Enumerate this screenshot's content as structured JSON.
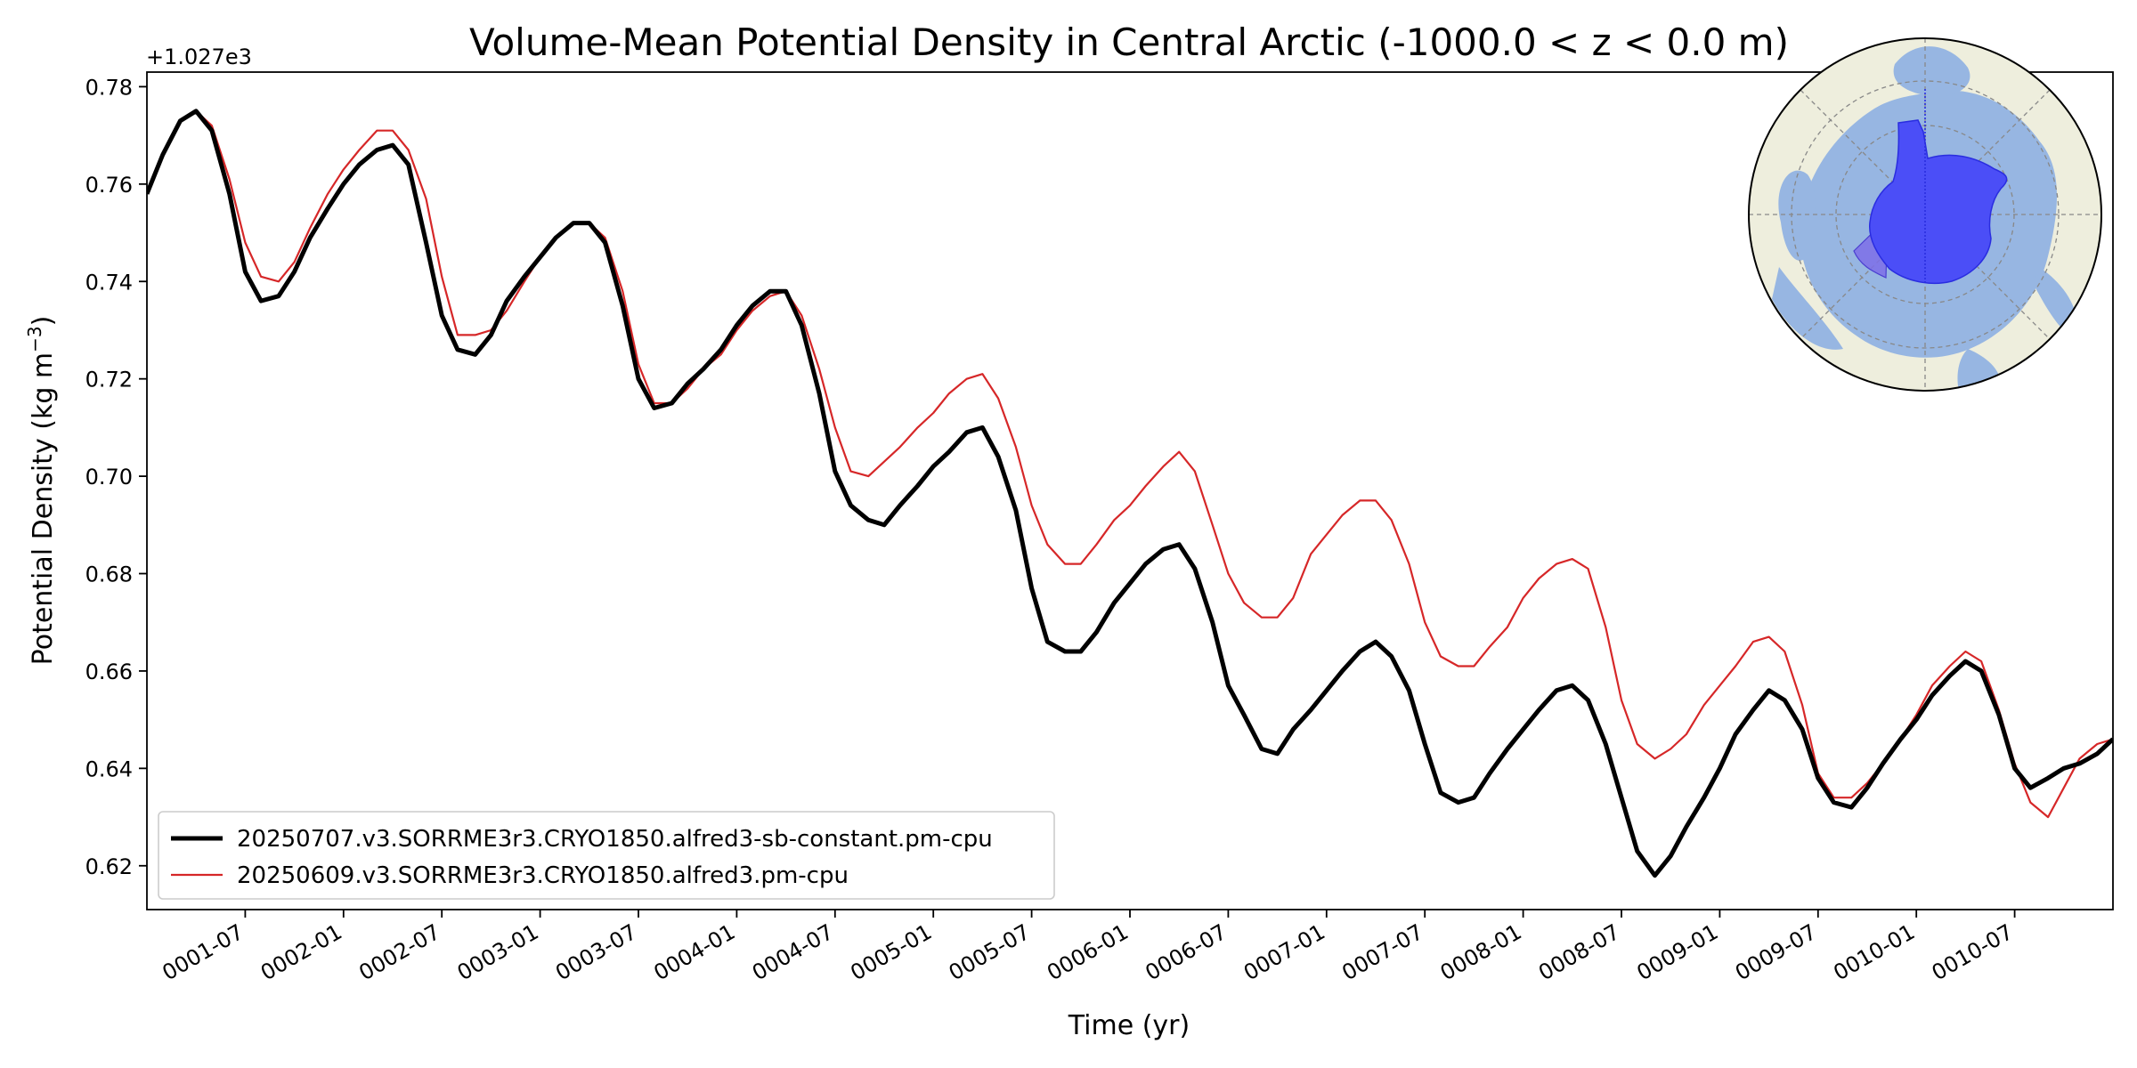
{
  "chart_data": {
    "type": "line",
    "title": "Volume-Mean Potential Density in Central Arctic (-1000.0 < z < 0.0 m)",
    "xlabel": "Time (yr)",
    "ylabel_main": "Potential Density (kg m",
    "ylabel_exp": "−3",
    "ylabel_close": ")",
    "y_offset_label": "+1.027e3",
    "ylim": [
      0.611,
      0.783
    ],
    "xlim": [
      1.0,
      11.0
    ],
    "yticks": [
      "0.62",
      "0.64",
      "0.66",
      "0.68",
      "0.70",
      "0.72",
      "0.74",
      "0.76",
      "0.78"
    ],
    "xticks": [
      "0001-07",
      "0002-01",
      "0002-07",
      "0003-01",
      "0003-07",
      "0004-01",
      "0004-07",
      "0005-01",
      "0005-07",
      "0006-01",
      "0006-07",
      "0007-01",
      "0007-07",
      "0008-01",
      "0008-07",
      "0009-01",
      "0009-07",
      "0010-01",
      "0010-07"
    ],
    "grid": false,
    "legend_position": "lower-left",
    "series": [
      {
        "name": "20250707.v3.SORRME3r3.CRYO1850.alfred3-sb-constant.pm-cpu",
        "color": "#000000",
        "width": "thick",
        "points": [
          [
            1.0,
            0.758
          ],
          [
            1.08,
            0.766
          ],
          [
            1.17,
            0.773
          ],
          [
            1.25,
            0.775
          ],
          [
            1.33,
            0.771
          ],
          [
            1.42,
            0.758
          ],
          [
            1.5,
            0.742
          ],
          [
            1.58,
            0.736
          ],
          [
            1.67,
            0.737
          ],
          [
            1.75,
            0.742
          ],
          [
            1.83,
            0.749
          ],
          [
            1.92,
            0.755
          ],
          [
            2.0,
            0.76
          ],
          [
            2.08,
            0.764
          ],
          [
            2.17,
            0.767
          ],
          [
            2.25,
            0.768
          ],
          [
            2.33,
            0.764
          ],
          [
            2.42,
            0.748
          ],
          [
            2.5,
            0.733
          ],
          [
            2.58,
            0.726
          ],
          [
            2.67,
            0.725
          ],
          [
            2.75,
            0.729
          ],
          [
            2.83,
            0.736
          ],
          [
            2.92,
            0.741
          ],
          [
            3.0,
            0.745
          ],
          [
            3.08,
            0.749
          ],
          [
            3.17,
            0.752
          ],
          [
            3.25,
            0.752
          ],
          [
            3.33,
            0.748
          ],
          [
            3.42,
            0.735
          ],
          [
            3.5,
            0.72
          ],
          [
            3.58,
            0.714
          ],
          [
            3.67,
            0.715
          ],
          [
            3.75,
            0.719
          ],
          [
            3.83,
            0.722
          ],
          [
            3.92,
            0.726
          ],
          [
            4.0,
            0.731
          ],
          [
            4.08,
            0.735
          ],
          [
            4.17,
            0.738
          ],
          [
            4.25,
            0.738
          ],
          [
            4.33,
            0.731
          ],
          [
            4.42,
            0.717
          ],
          [
            4.5,
            0.701
          ],
          [
            4.58,
            0.694
          ],
          [
            4.67,
            0.691
          ],
          [
            4.75,
            0.69
          ],
          [
            4.83,
            0.694
          ],
          [
            4.92,
            0.698
          ],
          [
            5.0,
            0.702
          ],
          [
            5.08,
            0.705
          ],
          [
            5.17,
            0.709
          ],
          [
            5.25,
            0.71
          ],
          [
            5.33,
            0.704
          ],
          [
            5.42,
            0.693
          ],
          [
            5.5,
            0.677
          ],
          [
            5.58,
            0.666
          ],
          [
            5.67,
            0.664
          ],
          [
            5.75,
            0.664
          ],
          [
            5.83,
            0.668
          ],
          [
            5.92,
            0.674
          ],
          [
            6.0,
            0.678
          ],
          [
            6.08,
            0.682
          ],
          [
            6.17,
            0.685
          ],
          [
            6.25,
            0.686
          ],
          [
            6.33,
            0.681
          ],
          [
            6.42,
            0.67
          ],
          [
            6.5,
            0.657
          ],
          [
            6.58,
            0.651
          ],
          [
            6.67,
            0.644
          ],
          [
            6.75,
            0.643
          ],
          [
            6.83,
            0.648
          ],
          [
            6.92,
            0.652
          ],
          [
            7.0,
            0.656
          ],
          [
            7.08,
            0.66
          ],
          [
            7.17,
            0.664
          ],
          [
            7.25,
            0.666
          ],
          [
            7.33,
            0.663
          ],
          [
            7.42,
            0.656
          ],
          [
            7.5,
            0.645
          ],
          [
            7.58,
            0.635
          ],
          [
            7.67,
            0.633
          ],
          [
            7.75,
            0.634
          ],
          [
            7.83,
            0.639
          ],
          [
            7.92,
            0.644
          ],
          [
            8.0,
            0.648
          ],
          [
            8.08,
            0.652
          ],
          [
            8.17,
            0.656
          ],
          [
            8.25,
            0.657
          ],
          [
            8.33,
            0.654
          ],
          [
            8.42,
            0.645
          ],
          [
            8.5,
            0.634
          ],
          [
            8.58,
            0.623
          ],
          [
            8.67,
            0.618
          ],
          [
            8.75,
            0.622
          ],
          [
            8.83,
            0.628
          ],
          [
            8.92,
            0.634
          ],
          [
            9.0,
            0.64
          ],
          [
            9.08,
            0.647
          ],
          [
            9.17,
            0.652
          ],
          [
            9.25,
            0.656
          ],
          [
            9.33,
            0.654
          ],
          [
            9.42,
            0.648
          ],
          [
            9.5,
            0.638
          ],
          [
            9.58,
            0.633
          ],
          [
            9.67,
            0.632
          ],
          [
            9.75,
            0.636
          ],
          [
            9.83,
            0.641
          ],
          [
            9.92,
            0.646
          ],
          [
            10.0,
            0.65
          ],
          [
            10.08,
            0.655
          ],
          [
            10.17,
            0.659
          ],
          [
            10.25,
            0.662
          ],
          [
            10.33,
            0.66
          ],
          [
            10.42,
            0.651
          ],
          [
            10.5,
            0.64
          ],
          [
            10.58,
            0.636
          ],
          [
            10.67,
            0.638
          ],
          [
            10.75,
            0.64
          ],
          [
            10.83,
            0.641
          ],
          [
            10.92,
            0.643
          ],
          [
            11.0,
            0.646
          ]
        ]
      },
      {
        "name": "20250609.v3.SORRME3r3.CRYO1850.alfred3.pm-cpu",
        "color": "#d62728",
        "width": "thin",
        "points": [
          [
            1.0,
            0.758
          ],
          [
            1.08,
            0.766
          ],
          [
            1.17,
            0.773
          ],
          [
            1.25,
            0.775
          ],
          [
            1.33,
            0.772
          ],
          [
            1.42,
            0.761
          ],
          [
            1.5,
            0.748
          ],
          [
            1.58,
            0.741
          ],
          [
            1.67,
            0.74
          ],
          [
            1.75,
            0.744
          ],
          [
            1.83,
            0.751
          ],
          [
            1.92,
            0.758
          ],
          [
            2.0,
            0.763
          ],
          [
            2.08,
            0.767
          ],
          [
            2.17,
            0.771
          ],
          [
            2.25,
            0.771
          ],
          [
            2.33,
            0.767
          ],
          [
            2.42,
            0.757
          ],
          [
            2.5,
            0.741
          ],
          [
            2.58,
            0.729
          ],
          [
            2.67,
            0.729
          ],
          [
            2.75,
            0.73
          ],
          [
            2.83,
            0.734
          ],
          [
            2.92,
            0.74
          ],
          [
            3.0,
            0.745
          ],
          [
            3.08,
            0.749
          ],
          [
            3.17,
            0.752
          ],
          [
            3.25,
            0.752
          ],
          [
            3.33,
            0.749
          ],
          [
            3.42,
            0.738
          ],
          [
            3.5,
            0.723
          ],
          [
            3.58,
            0.715
          ],
          [
            3.67,
            0.715
          ],
          [
            3.75,
            0.718
          ],
          [
            3.83,
            0.722
          ],
          [
            3.92,
            0.725
          ],
          [
            4.0,
            0.73
          ],
          [
            4.08,
            0.734
          ],
          [
            4.17,
            0.737
          ],
          [
            4.25,
            0.738
          ],
          [
            4.33,
            0.733
          ],
          [
            4.42,
            0.722
          ],
          [
            4.5,
            0.71
          ],
          [
            4.58,
            0.701
          ],
          [
            4.67,
            0.7
          ],
          [
            4.75,
            0.703
          ],
          [
            4.83,
            0.706
          ],
          [
            4.92,
            0.71
          ],
          [
            5.0,
            0.713
          ],
          [
            5.08,
            0.717
          ],
          [
            5.17,
            0.72
          ],
          [
            5.25,
            0.721
          ],
          [
            5.33,
            0.716
          ],
          [
            5.42,
            0.706
          ],
          [
            5.5,
            0.694
          ],
          [
            5.58,
            0.686
          ],
          [
            5.67,
            0.682
          ],
          [
            5.75,
            0.682
          ],
          [
            5.83,
            0.686
          ],
          [
            5.92,
            0.691
          ],
          [
            6.0,
            0.694
          ],
          [
            6.08,
            0.698
          ],
          [
            6.17,
            0.702
          ],
          [
            6.25,
            0.705
          ],
          [
            6.33,
            0.701
          ],
          [
            6.42,
            0.69
          ],
          [
            6.5,
            0.68
          ],
          [
            6.58,
            0.674
          ],
          [
            6.67,
            0.671
          ],
          [
            6.75,
            0.671
          ],
          [
            6.83,
            0.675
          ],
          [
            6.92,
            0.684
          ],
          [
            7.0,
            0.688
          ],
          [
            7.08,
            0.692
          ],
          [
            7.17,
            0.695
          ],
          [
            7.25,
            0.695
          ],
          [
            7.33,
            0.691
          ],
          [
            7.42,
            0.682
          ],
          [
            7.5,
            0.67
          ],
          [
            7.58,
            0.663
          ],
          [
            7.67,
            0.661
          ],
          [
            7.75,
            0.661
          ],
          [
            7.83,
            0.665
          ],
          [
            7.92,
            0.669
          ],
          [
            8.0,
            0.675
          ],
          [
            8.08,
            0.679
          ],
          [
            8.17,
            0.682
          ],
          [
            8.25,
            0.683
          ],
          [
            8.33,
            0.681
          ],
          [
            8.42,
            0.669
          ],
          [
            8.5,
            0.654
          ],
          [
            8.58,
            0.645
          ],
          [
            8.67,
            0.642
          ],
          [
            8.75,
            0.644
          ],
          [
            8.83,
            0.647
          ],
          [
            8.92,
            0.653
          ],
          [
            9.0,
            0.657
          ],
          [
            9.08,
            0.661
          ],
          [
            9.17,
            0.666
          ],
          [
            9.25,
            0.667
          ],
          [
            9.33,
            0.664
          ],
          [
            9.42,
            0.653
          ],
          [
            9.5,
            0.639
          ],
          [
            9.58,
            0.634
          ],
          [
            9.67,
            0.634
          ],
          [
            9.75,
            0.637
          ],
          [
            9.83,
            0.641
          ],
          [
            9.92,
            0.646
          ],
          [
            10.0,
            0.651
          ],
          [
            10.08,
            0.657
          ],
          [
            10.17,
            0.661
          ],
          [
            10.25,
            0.664
          ],
          [
            10.33,
            0.662
          ],
          [
            10.42,
            0.652
          ],
          [
            10.5,
            0.641
          ],
          [
            10.58,
            0.633
          ],
          [
            10.67,
            0.63
          ],
          [
            10.75,
            0.636
          ],
          [
            10.83,
            0.642
          ],
          [
            10.92,
            0.645
          ],
          [
            11.0,
            0.646
          ]
        ]
      }
    ]
  }
}
